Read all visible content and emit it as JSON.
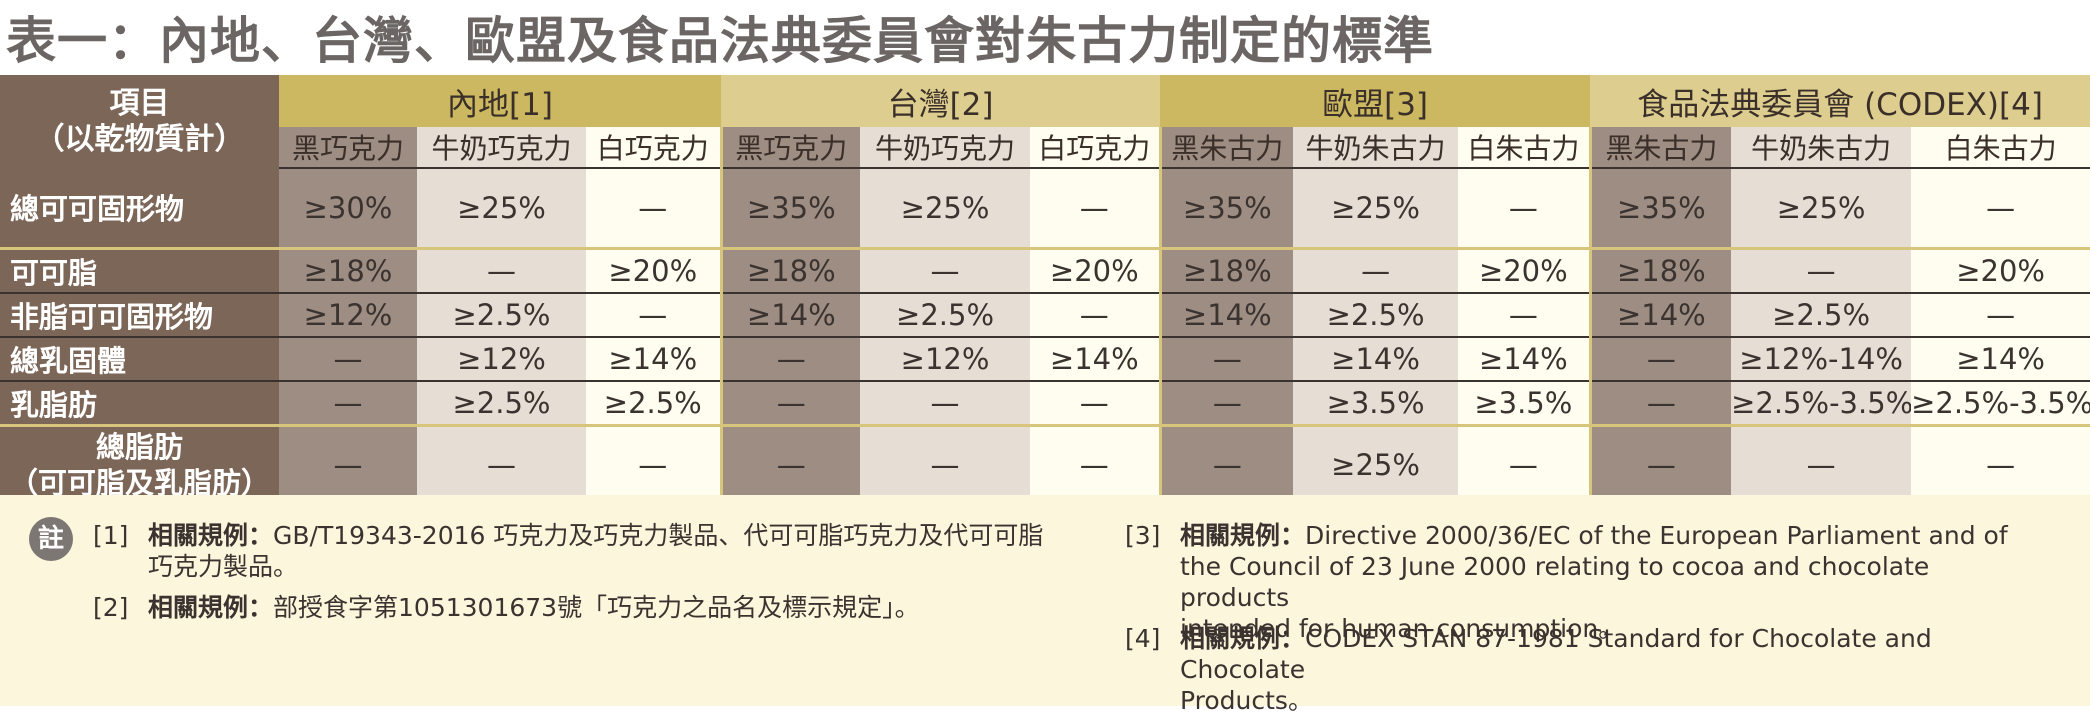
{
  "title": "表一：內地、台灣、歐盟及食品法典委員會對朱古力制定的標準",
  "item_header": {
    "line1": "項目",
    "line2": "（以乾物質計）"
  },
  "groups": [
    {
      "label": "內地[1]",
      "cols": [
        "黑巧克力",
        "牛奶巧克力",
        "白巧克力"
      ]
    },
    {
      "label": "台灣[2]",
      "cols": [
        "黑巧克力",
        "牛奶巧克力",
        "白巧克力"
      ]
    },
    {
      "label": "歐盟[3]",
      "cols": [
        "黑朱古力",
        "牛奶朱古力",
        "白朱古力"
      ]
    },
    {
      "label": "食品法典委員會 (CODEX)[4]",
      "cols": [
        "黑朱古力",
        "牛奶朱古力",
        "白朱古力"
      ]
    }
  ],
  "rows": [
    {
      "label": "總可可固形物",
      "values": [
        "≥30%",
        "≥25%",
        "—",
        "≥35%",
        "≥25%",
        "—",
        "≥35%",
        "≥25%",
        "—",
        "≥35%",
        "≥25%",
        "—"
      ]
    },
    {
      "label": "可可脂",
      "values": [
        "≥18%",
        "—",
        "≥20%",
        "≥18%",
        "—",
        "≥20%",
        "≥18%",
        "—",
        "≥20%",
        "≥18%",
        "—",
        "≥20%"
      ]
    },
    {
      "label": "非脂可可固形物",
      "values": [
        "≥12%",
        "≥2.5%",
        "—",
        "≥14%",
        "≥2.5%",
        "—",
        "≥14%",
        "≥2.5%",
        "—",
        "≥14%",
        "≥2.5%",
        "—"
      ]
    },
    {
      "label": "總乳固體",
      "values": [
        "—",
        "≥12%",
        "≥14%",
        "—",
        "≥12%",
        "≥14%",
        "—",
        "≥14%",
        "≥14%",
        "—",
        "≥12%-14%",
        "≥14%"
      ]
    },
    {
      "label": "乳脂肪",
      "values": [
        "—",
        "≥2.5%",
        "≥2.5%",
        "—",
        "—",
        "—",
        "—",
        "≥3.5%",
        "≥3.5%",
        "—",
        "≥2.5%-3.5%",
        "≥2.5%-3.5%"
      ]
    },
    {
      "label": "總脂肪",
      "label2": "（可可脂及乳脂肪）",
      "values": [
        "—",
        "—",
        "—",
        "—",
        "—",
        "—",
        "—",
        "≥25%",
        "—",
        "—",
        "—",
        "—"
      ]
    }
  ],
  "notes": {
    "badge": "註",
    "items": [
      {
        "num": "[1]",
        "label": "相關規例：",
        "line1": "GB/T19343-2016 巧克力及巧克力製品、代可可脂巧克力及代可可脂",
        "line2": "巧克力製品。",
        "line3": ""
      },
      {
        "num": "[2]",
        "label": "相關規例：",
        "line1": "部授食字第1051301673號「巧克力之品名及標示規定」。",
        "line2": "",
        "line3": ""
      },
      {
        "num": "[3]",
        "label": "相關規例：",
        "line1": "Directive 2000/36/EC of the European Parliament and of",
        "line2": "the Council of 23 June 2000 relating to cocoa and chocolate products",
        "line3": "intended for human consumption。"
      },
      {
        "num": "[4]",
        "label": "相關規例：",
        "line1": "CODEX STAN 87-1981 Standard for Chocolate and Chocolate",
        "line2": "Products。",
        "line3": ""
      }
    ]
  },
  "colors": {
    "item_column": "#7b6658",
    "dark_column": "#9e8d82",
    "milk_column": "#e6ded4",
    "white_column": "#fffdf0",
    "group_header_gold": "#cbb860",
    "group_header_light": "#ddce8f",
    "notes_background": "#fbf6dc",
    "title_gray": "#6b6663"
  }
}
